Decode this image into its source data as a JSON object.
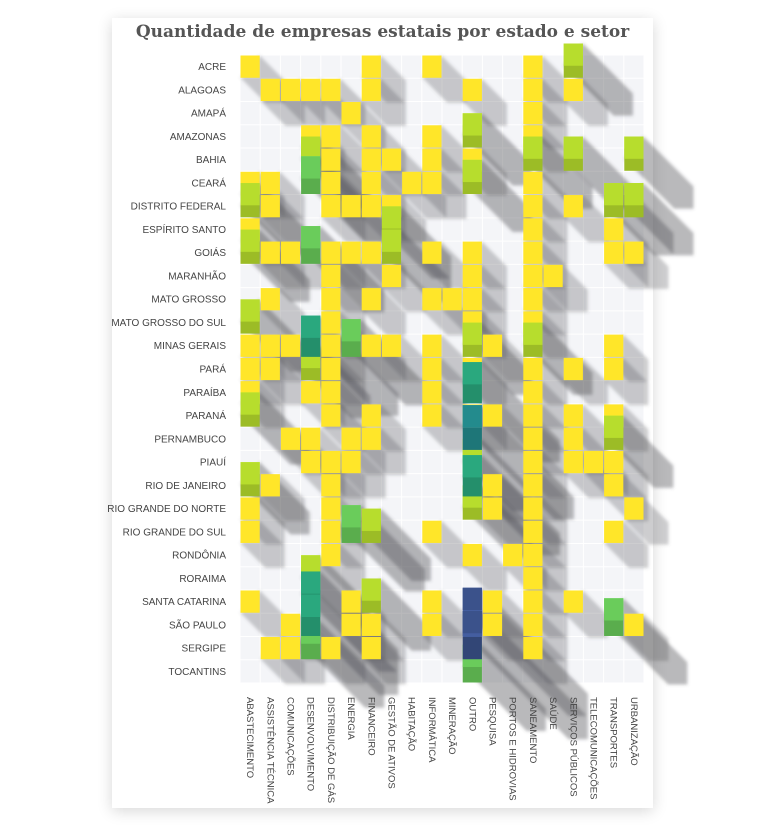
{
  "chart_data": {
    "type": "heatmap",
    "title": "Quantidade de empresas estatais por estado e setor",
    "rows": [
      "ACRE",
      "ALAGOAS",
      "AMAPÁ",
      "AMAZONAS",
      "BAHIA",
      "CEARÁ",
      "DISTRITO FEDERAL",
      "ESPÍRITO SANTO",
      "GOIÁS",
      "MARANHÃO",
      "MATO GROSSO",
      "MATO GROSSO DO SUL",
      "MINAS GERAIS",
      "PARÁ",
      "PARAÍBA",
      "PARANÁ",
      "PERNAMBUCO",
      "PIAUÍ",
      "RIO DE JANEIRO",
      "RIO GRANDE DO NORTE",
      "RIO GRANDE DO SUL",
      "RONDÔNIA",
      "RORAIMA",
      "SANTA CATARINA",
      "SÃO PAULO",
      "SERGIPE",
      "TOCANTINS"
    ],
    "columns": [
      "ABASTECIMENTO",
      "ASSISTÊNCIA TÉCNICA",
      "COMUNICAÇÕES",
      "DESENVOLVIMENTO",
      "DISTRIBUIÇÃO DE GÁS",
      "ENERGIA",
      "FINANCEIRO",
      "GESTÃO DE ATIVOS",
      "HABITAÇÃO",
      "INFORMÁTICA",
      "MINERAÇÃO",
      "OUTRO",
      "PESQUISA",
      "PORTOS E HIDROVIAS",
      "SANEAMENTO",
      "SAÚDE",
      "SERVIÇOS PÚBLICOS",
      "TELECOMUNICAÇÕES",
      "TRANSPORTES",
      "URBANIZAÇÃO"
    ],
    "cells": [
      [
        0,
        0,
        1
      ],
      [
        0,
        6,
        1
      ],
      [
        0,
        9,
        1
      ],
      [
        0,
        14,
        1
      ],
      [
        0,
        16,
        2
      ],
      [
        1,
        1,
        1
      ],
      [
        1,
        2,
        1
      ],
      [
        1,
        3,
        1
      ],
      [
        1,
        4,
        1
      ],
      [
        1,
        6,
        1
      ],
      [
        1,
        11,
        1
      ],
      [
        1,
        14,
        1
      ],
      [
        1,
        16,
        1
      ],
      [
        2,
        5,
        1
      ],
      [
        2,
        14,
        1
      ],
      [
        3,
        3,
        1
      ],
      [
        3,
        4,
        1
      ],
      [
        3,
        6,
        1
      ],
      [
        3,
        9,
        1
      ],
      [
        3,
        11,
        2
      ],
      [
        3,
        14,
        1
      ],
      [
        4,
        3,
        2
      ],
      [
        4,
        4,
        1
      ],
      [
        4,
        6,
        1
      ],
      [
        4,
        7,
        1
      ],
      [
        4,
        9,
        1
      ],
      [
        4,
        11,
        1
      ],
      [
        4,
        14,
        2
      ],
      [
        4,
        16,
        2
      ],
      [
        4,
        19,
        2
      ],
      [
        5,
        0,
        1
      ],
      [
        5,
        1,
        1
      ],
      [
        5,
        3,
        3
      ],
      [
        5,
        4,
        1
      ],
      [
        5,
        6,
        1
      ],
      [
        5,
        8,
        1
      ],
      [
        5,
        9,
        1
      ],
      [
        5,
        11,
        2
      ],
      [
        5,
        14,
        1
      ],
      [
        6,
        0,
        2
      ],
      [
        6,
        1,
        1
      ],
      [
        6,
        4,
        1
      ],
      [
        6,
        5,
        1
      ],
      [
        6,
        6,
        1
      ],
      [
        6,
        7,
        1
      ],
      [
        6,
        14,
        1
      ],
      [
        6,
        16,
        1
      ],
      [
        6,
        18,
        2
      ],
      [
        6,
        19,
        2
      ],
      [
        7,
        0,
        1
      ],
      [
        7,
        7,
        2
      ],
      [
        7,
        14,
        1
      ],
      [
        7,
        18,
        1
      ],
      [
        8,
        0,
        2
      ],
      [
        8,
        1,
        1
      ],
      [
        8,
        2,
        1
      ],
      [
        8,
        3,
        3
      ],
      [
        8,
        4,
        1
      ],
      [
        8,
        5,
        1
      ],
      [
        8,
        6,
        1
      ],
      [
        8,
        7,
        2
      ],
      [
        8,
        9,
        1
      ],
      [
        8,
        11,
        1
      ],
      [
        8,
        14,
        1
      ],
      [
        8,
        18,
        1
      ],
      [
        8,
        19,
        1
      ],
      [
        9,
        4,
        1
      ],
      [
        9,
        7,
        1
      ],
      [
        9,
        11,
        1
      ],
      [
        9,
        14,
        1
      ],
      [
        9,
        15,
        1
      ],
      [
        10,
        1,
        1
      ],
      [
        10,
        4,
        1
      ],
      [
        10,
        6,
        1
      ],
      [
        10,
        9,
        1
      ],
      [
        10,
        10,
        1
      ],
      [
        10,
        11,
        1
      ],
      [
        10,
        14,
        1
      ],
      [
        11,
        0,
        2
      ],
      [
        11,
        4,
        1
      ],
      [
        11,
        11,
        1
      ],
      [
        11,
        14,
        1
      ],
      [
        12,
        0,
        1
      ],
      [
        12,
        1,
        1
      ],
      [
        12,
        2,
        1
      ],
      [
        12,
        3,
        4
      ],
      [
        12,
        4,
        1
      ],
      [
        12,
        5,
        3
      ],
      [
        12,
        6,
        1
      ],
      [
        12,
        7,
        1
      ],
      [
        12,
        9,
        1
      ],
      [
        12,
        11,
        2
      ],
      [
        12,
        12,
        1
      ],
      [
        12,
        14,
        2
      ],
      [
        12,
        18,
        1
      ],
      [
        13,
        0,
        1
      ],
      [
        13,
        1,
        1
      ],
      [
        13,
        3,
        2
      ],
      [
        13,
        4,
        1
      ],
      [
        13,
        9,
        1
      ],
      [
        13,
        11,
        1
      ],
      [
        13,
        14,
        1
      ],
      [
        13,
        16,
        1
      ],
      [
        13,
        18,
        1
      ],
      [
        14,
        0,
        1
      ],
      [
        14,
        3,
        1
      ],
      [
        14,
        4,
        1
      ],
      [
        14,
        9,
        1
      ],
      [
        14,
        11,
        4
      ],
      [
        14,
        14,
        1
      ],
      [
        15,
        0,
        2
      ],
      [
        15,
        4,
        1
      ],
      [
        15,
        6,
        1
      ],
      [
        15,
        9,
        1
      ],
      [
        15,
        11,
        1
      ],
      [
        15,
        12,
        1
      ],
      [
        15,
        14,
        1
      ],
      [
        15,
        16,
        1
      ],
      [
        15,
        18,
        1
      ],
      [
        16,
        2,
        1
      ],
      [
        16,
        3,
        1
      ],
      [
        16,
        5,
        1
      ],
      [
        16,
        6,
        1
      ],
      [
        16,
        11,
        5
      ],
      [
        16,
        14,
        1
      ],
      [
        16,
        16,
        1
      ],
      [
        16,
        18,
        2
      ],
      [
        17,
        3,
        1
      ],
      [
        17,
        4,
        1
      ],
      [
        17,
        5,
        1
      ],
      [
        17,
        11,
        2
      ],
      [
        17,
        14,
        1
      ],
      [
        17,
        16,
        1
      ],
      [
        17,
        17,
        1
      ],
      [
        17,
        18,
        1
      ],
      [
        18,
        0,
        2
      ],
      [
        18,
        1,
        1
      ],
      [
        18,
        4,
        1
      ],
      [
        18,
        11,
        4
      ],
      [
        18,
        12,
        1
      ],
      [
        18,
        14,
        1
      ],
      [
        18,
        18,
        1
      ],
      [
        19,
        0,
        1
      ],
      [
        19,
        4,
        1
      ],
      [
        19,
        11,
        2
      ],
      [
        19,
        12,
        1
      ],
      [
        19,
        14,
        1
      ],
      [
        19,
        19,
        1
      ],
      [
        20,
        0,
        1
      ],
      [
        20,
        4,
        1
      ],
      [
        20,
        5,
        3
      ],
      [
        20,
        6,
        2
      ],
      [
        20,
        9,
        1
      ],
      [
        20,
        14,
        1
      ],
      [
        20,
        18,
        1
      ],
      [
        21,
        4,
        1
      ],
      [
        21,
        11,
        1
      ],
      [
        21,
        13,
        1
      ],
      [
        21,
        14,
        1
      ],
      [
        22,
        3,
        2
      ],
      [
        22,
        14,
        1
      ],
      [
        23,
        0,
        1
      ],
      [
        23,
        3,
        4
      ],
      [
        23,
        5,
        1
      ],
      [
        23,
        6,
        2
      ],
      [
        23,
        9,
        1
      ],
      [
        23,
        12,
        1
      ],
      [
        23,
        14,
        1
      ],
      [
        23,
        16,
        1
      ],
      [
        24,
        2,
        1
      ],
      [
        24,
        3,
        4
      ],
      [
        24,
        5,
        1
      ],
      [
        24,
        6,
        1
      ],
      [
        24,
        9,
        1
      ],
      [
        24,
        11,
        6
      ],
      [
        24,
        12,
        1
      ],
      [
        24,
        14,
        1
      ],
      [
        24,
        18,
        3
      ],
      [
        24,
        19,
        1
      ],
      [
        25,
        1,
        1
      ],
      [
        25,
        2,
        1
      ],
      [
        25,
        3,
        3
      ],
      [
        25,
        4,
        1
      ],
      [
        25,
        6,
        1
      ],
      [
        25,
        11,
        6
      ],
      [
        25,
        14,
        1
      ],
      [
        26,
        11,
        3
      ]
    ],
    "colorscale": [
      "#ffe629",
      "#b7dd2d",
      "#6acc5b",
      "#2aa87e",
      "#238b8d",
      "#3b528b",
      "#440154"
    ],
    "background": "#f4f5f8"
  }
}
